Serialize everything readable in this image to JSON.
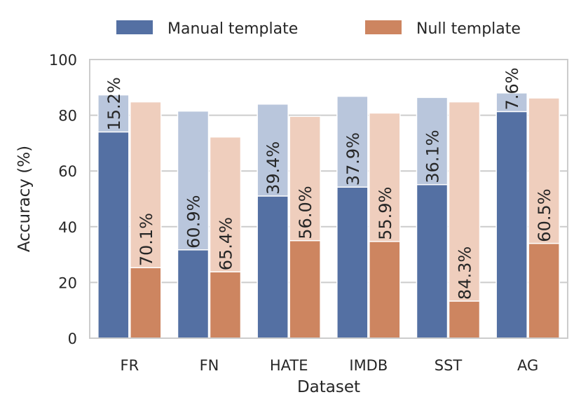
{
  "chart_data": {
    "type": "bar",
    "xlabel": "Dataset",
    "ylabel": "Accuracy (%)",
    "ylim": [
      0,
      100
    ],
    "yticks": [
      0,
      20,
      40,
      60,
      80,
      100
    ],
    "grid": "horizontal",
    "legend_position": "top",
    "categories": [
      "FR",
      "FN",
      "HATE",
      "IMDB",
      "SST",
      "AG"
    ],
    "series": [
      {
        "name": "Manual template",
        "color": "#5470a3",
        "background_color": "#b9c6dc",
        "values": [
          74,
          31.7,
          51,
          54.2,
          55.1,
          81.3
        ],
        "background_values": [
          87.3,
          81.5,
          84,
          86.8,
          86.4,
          88
        ],
        "labels": [
          "15.2%",
          "60.9%",
          "39.4%",
          "37.9%",
          "36.1%",
          "7.6%"
        ]
      },
      {
        "name": "Null template",
        "color": "#cd8560",
        "background_color": "#efcebd",
        "values": [
          25.3,
          23.8,
          35,
          34.7,
          13.3,
          34
        ],
        "background_values": [
          84.8,
          72.2,
          79.6,
          80.8,
          84.8,
          86.2
        ],
        "labels": [
          "70.1%",
          "65.4%",
          "56.0%",
          "55.9%",
          "84.3%",
          "60.5%"
        ]
      }
    ]
  }
}
